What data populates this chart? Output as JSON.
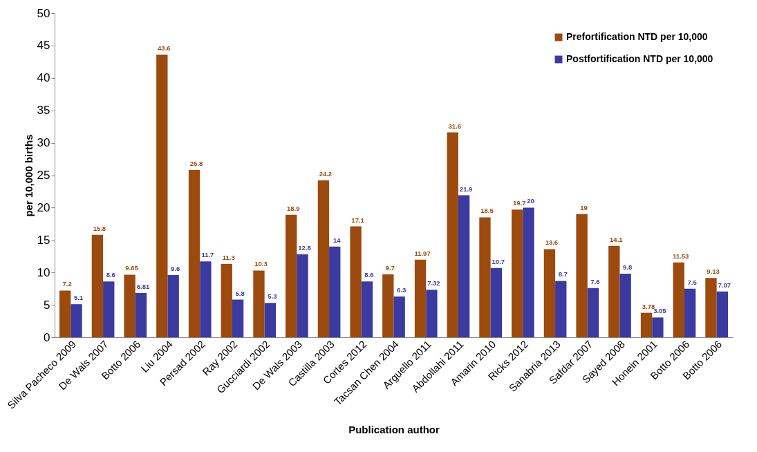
{
  "chart_data": {
    "type": "bar",
    "xlabel": "Publication author",
    "ylabel": "per 10,000 births",
    "categories": [
      "Silva Pacheco 2009",
      "De Wals 2007",
      "Botto 2006",
      "Liu 2004",
      "Persad 2002",
      "Ray 2002",
      "Gucciardi 2002",
      "De Wals 2003",
      "Castilla 2003",
      "Cortes 2012",
      "Tacsan Chen 2004",
      "Arguello 2011",
      "Abdollahi 2011",
      "Amarin 2010",
      "Ricks 2012",
      "Sanabria 2013",
      "Safdar 2007",
      "Sayed 2008",
      "Honein 2001",
      "Botto 2006",
      "Botto 2006"
    ],
    "series": [
      {
        "name": "Prefortification NTD per 10,000",
        "color": "#9c4a0e",
        "values": [
          7.2,
          15.8,
          9.65,
          43.6,
          25.8,
          11.3,
          10.3,
          18.9,
          24.2,
          17.1,
          9.7,
          11.97,
          31.6,
          18.5,
          19.7,
          13.6,
          19,
          14.1,
          3.78,
          11.53,
          9.13
        ]
      },
      {
        "name": "Postfortification NTD per 10,000",
        "color": "#3b3aa0",
        "values": [
          5.1,
          8.6,
          6.81,
          9.6,
          11.7,
          5.8,
          5.3,
          12.8,
          14,
          8.6,
          6.3,
          7.32,
          21.9,
          10.7,
          20,
          8.7,
          7.6,
          9.8,
          3.05,
          7.5,
          7.07
        ]
      }
    ],
    "ylim": [
      0,
      50
    ],
    "yticks": [
      0,
      5,
      10,
      15,
      20,
      25,
      30,
      35,
      40,
      45,
      50
    ],
    "data_labels": true,
    "grid": false,
    "legend": "top right"
  }
}
